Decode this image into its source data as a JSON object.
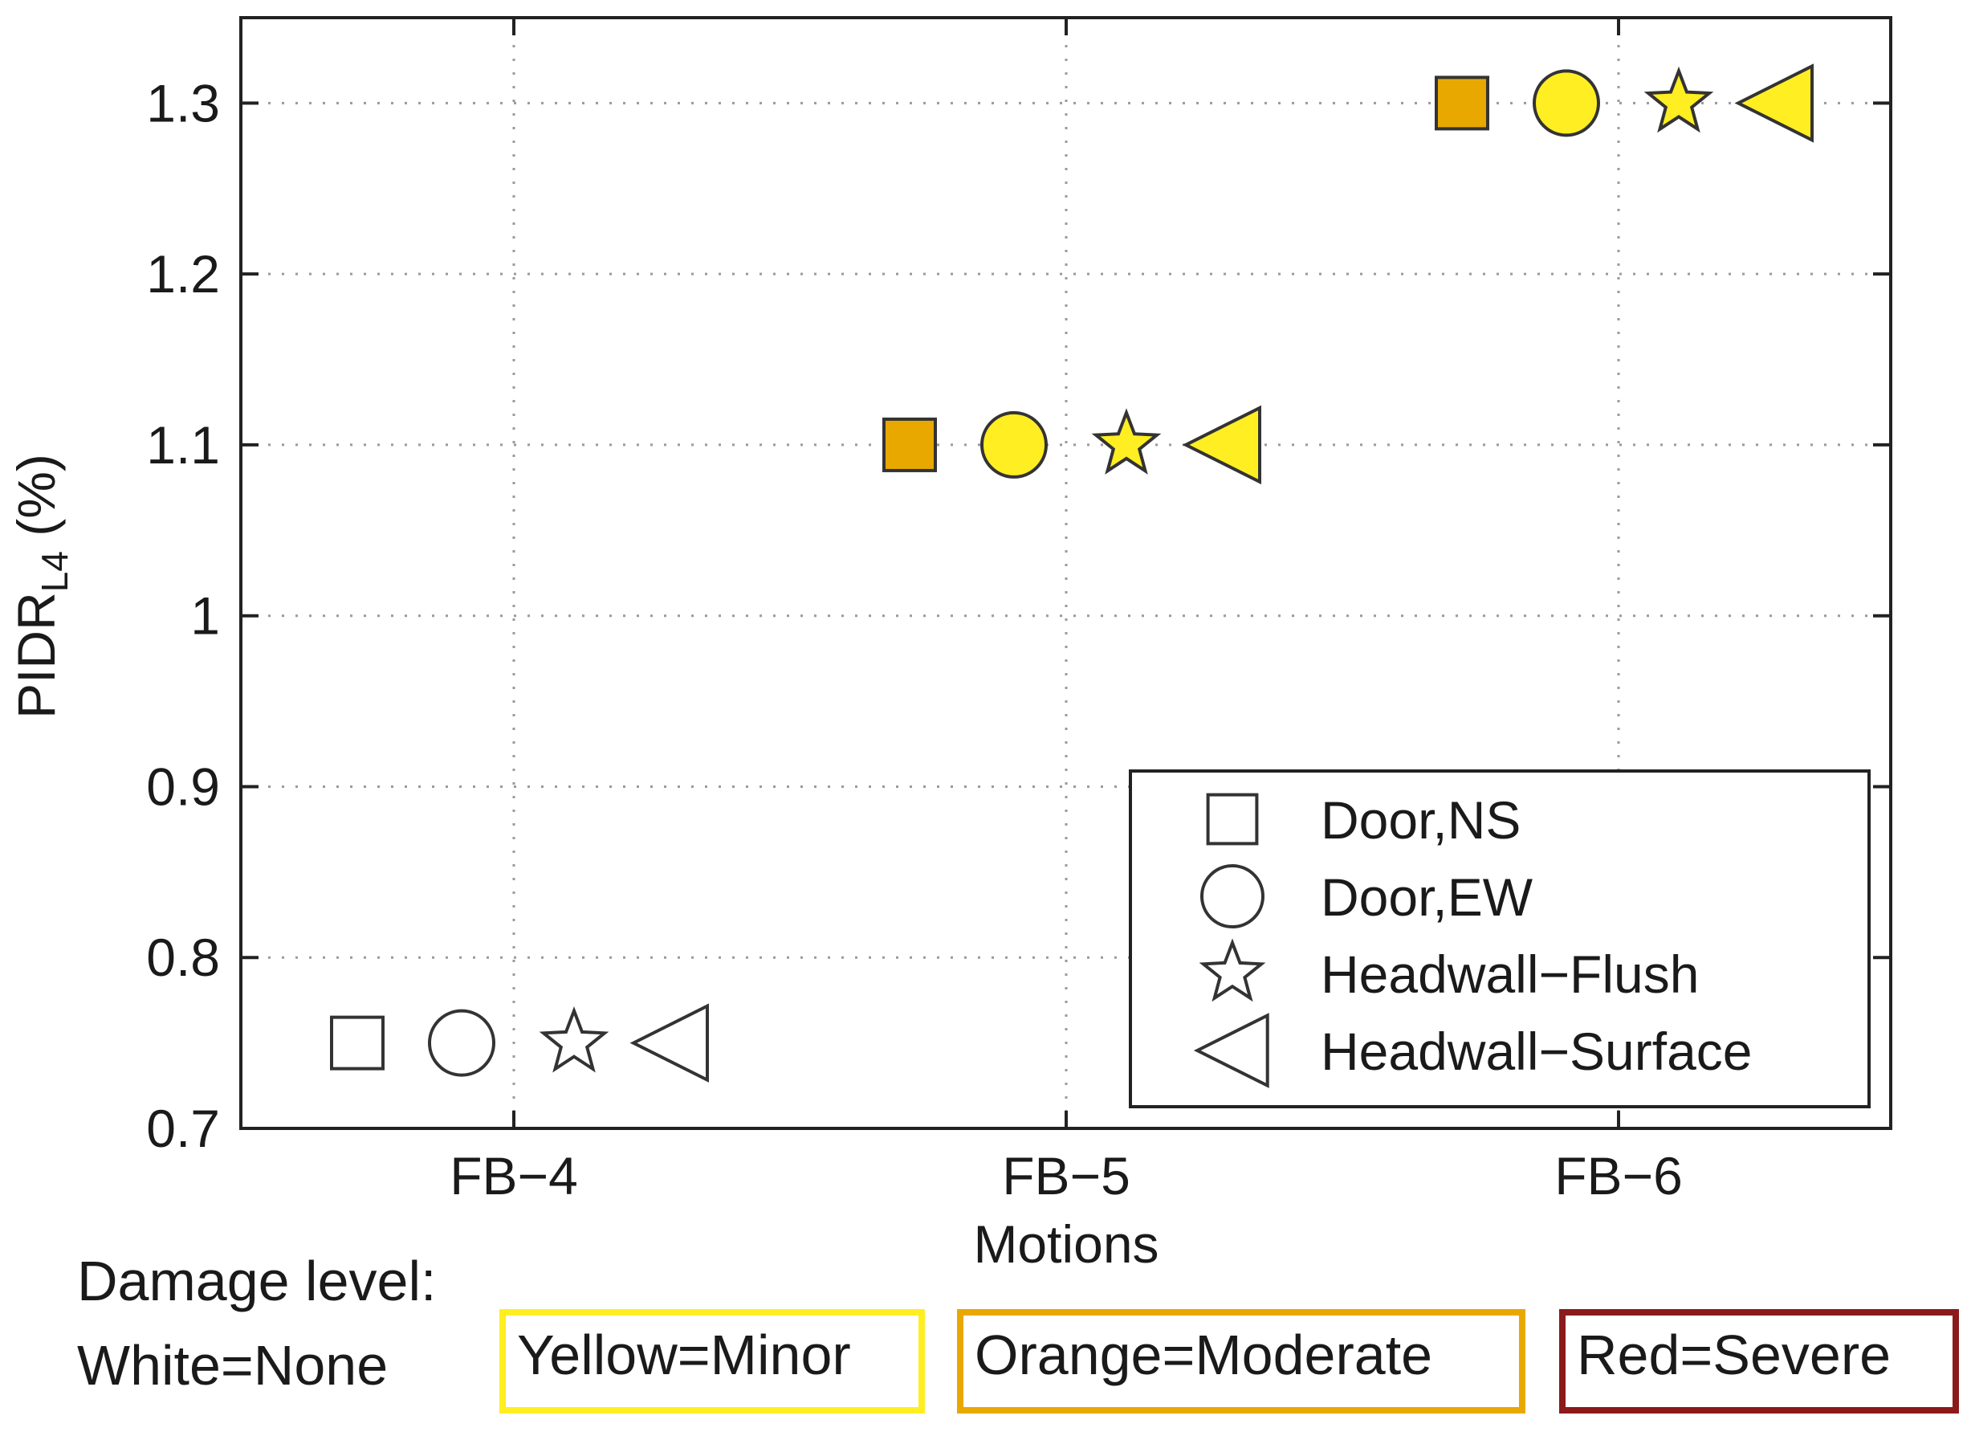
{
  "chart_data": {
    "type": "scatter",
    "xlabel": "Motions",
    "ylabel": "PIDR",
    "ylabel_subscript": "L4",
    "ylabel_unit": " (%)",
    "categories": [
      "FB−4",
      "FB−5",
      "FB−6"
    ],
    "ylim": [
      0.7,
      1.35
    ],
    "yticks": [
      0.7,
      0.8,
      0.9,
      1.0,
      1.1,
      1.2,
      1.3
    ],
    "ytick_labels": [
      "0.7",
      "0.8",
      "0.9",
      "1",
      "1.1",
      "1.2",
      "1.3"
    ],
    "grid": true,
    "legend_position": "bottom-right",
    "series": [
      {
        "name": "Door,NS",
        "marker": "square",
        "points": [
          {
            "x": "FB−4",
            "y": 0.75,
            "color": "#ffffff"
          },
          {
            "x": "FB−5",
            "y": 1.1,
            "color": "#e8a800"
          },
          {
            "x": "FB−6",
            "y": 1.3,
            "color": "#e8a800"
          }
        ]
      },
      {
        "name": "Door,EW",
        "marker": "circle",
        "points": [
          {
            "x": "FB−4",
            "y": 0.75,
            "color": "#ffffff"
          },
          {
            "x": "FB−5",
            "y": 1.1,
            "color": "#ffee22"
          },
          {
            "x": "FB−6",
            "y": 1.3,
            "color": "#ffee22"
          }
        ]
      },
      {
        "name": "Headwall−Flush",
        "marker": "star",
        "points": [
          {
            "x": "FB−4",
            "y": 0.75,
            "color": "#ffffff"
          },
          {
            "x": "FB−5",
            "y": 1.1,
            "color": "#ffee22"
          },
          {
            "x": "FB−6",
            "y": 1.3,
            "color": "#ffee22"
          }
        ]
      },
      {
        "name": "Headwall−Surface",
        "marker": "triangle-left",
        "points": [
          {
            "x": "FB−4",
            "y": 0.75,
            "color": "#ffffff"
          },
          {
            "x": "FB−5",
            "y": 1.1,
            "color": "#ffee22"
          },
          {
            "x": "FB−6",
            "y": 1.3,
            "color": "#ffee22"
          }
        ]
      }
    ]
  },
  "damage_key": {
    "title": "Damage level:",
    "levels": [
      {
        "label": "White=None",
        "color": "#ffffff"
      },
      {
        "label": "Yellow=Minor",
        "color": "#ffee22"
      },
      {
        "label": "Orange=Moderate",
        "color": "#e8a800"
      },
      {
        "label": "Red=Severe",
        "color": "#8b1a1a"
      }
    ]
  }
}
